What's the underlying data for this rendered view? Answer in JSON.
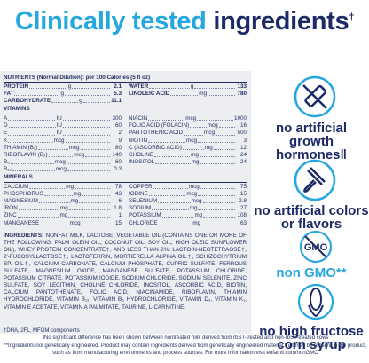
{
  "title": {
    "light": "Clinically tested",
    "dark": "ingredients",
    "mark": "†"
  },
  "nutrition": {
    "header": "NUTRIENTS (Normal Dilution): per 100 Calories (5 fl oz)",
    "macros": {
      "left": [
        {
          "name": "PROTEIN",
          "unit": "g",
          "value": 2.1
        },
        {
          "name": "FAT",
          "unit": "g",
          "value": 5.3
        },
        {
          "name": "CARBOHYDRATE",
          "unit": "g",
          "value": 11.1
        }
      ],
      "right": [
        {
          "name": "WATER",
          "unit": "g",
          "value": 133
        },
        {
          "name": "LINOLEIC ACID",
          "unit": "mg",
          "value": 780
        }
      ]
    },
    "vitamins": {
      "heading": "VITAMINS",
      "left": [
        {
          "name": "A",
          "unit": "IU",
          "value": 300
        },
        {
          "name": "D",
          "unit": "IU",
          "value": 60
        },
        {
          "name": "E",
          "unit": "IU",
          "value": 2
        },
        {
          "name": "K",
          "unit": "mcg",
          "value": 9
        },
        {
          "name": "THIAMIN (B₁)",
          "unit": "mcg",
          "value": 80
        },
        {
          "name": "RIBOFLAVIN (B₂)",
          "unit": "mcg",
          "value": 140
        },
        {
          "name": "B₆",
          "unit": "mcg",
          "value": 60
        },
        {
          "name": "B₁₂",
          "unit": "mcg",
          "value": 0.3
        }
      ],
      "right": [
        {
          "name": "NIACIN",
          "unit": "mcg",
          "value": 1000
        },
        {
          "name": "FOLIC ACID (FOLACIN)",
          "unit": "mcg",
          "value": 16
        },
        {
          "name": "PANTOTHENIC ACID",
          "unit": "mcg",
          "value": 500
        },
        {
          "name": "BIOTIN",
          "unit": "mcg",
          "value": 3
        },
        {
          "name": "C (ASCORBIC ACID)",
          "unit": "mg",
          "value": 12
        },
        {
          "name": "CHOLINE",
          "unit": "mg",
          "value": 24
        },
        {
          "name": "INOSITOL",
          "unit": "mg",
          "value": 24
        }
      ]
    },
    "minerals": {
      "heading": "MINERALS",
      "left": [
        {
          "name": "CALCIUM",
          "unit": "mg",
          "value": 78
        },
        {
          "name": "PHOSPHORUS",
          "unit": "mg",
          "value": 43
        },
        {
          "name": "MAGNESIUM",
          "unit": "mg",
          "value": 6
        },
        {
          "name": "IRON",
          "unit": "mg",
          "value": 1.8
        },
        {
          "name": "ZINC",
          "unit": "mg",
          "value": 1
        },
        {
          "name": "MANGANESE",
          "unit": "mcg",
          "value": 15
        }
      ],
      "right": [
        {
          "name": "COPPER",
          "unit": "mcg",
          "value": 75
        },
        {
          "name": "IODINE",
          "unit": "mcg",
          "value": 15
        },
        {
          "name": "SELENIUM",
          "unit": "mcg",
          "value": 2.8
        },
        {
          "name": "SODIUM",
          "unit": "mg",
          "value": 27
        },
        {
          "name": "POTASSIUM",
          "unit": "mg",
          "value": 108
        },
        {
          "name": "CHLORIDE",
          "unit": "mg",
          "value": 63
        }
      ]
    },
    "ingredients": {
      "label": "INGREDIENTS:",
      "text": "NONFAT MILK, LACTOSE, VEGETABLE OIL (CONTAINS ONE OR MORE OF THE FOLLOWING: PALM OLEIN OIL, COCONUT OIL, SOY OIL, HIGH OLEIC SUNFLOWER OIL), WHEY PROTEIN CONCENTRATE†, AND LESS THAN 2%: LACTO-N-NEOTETRAOSE†, 2'-FUCOSYLLACTOSE†, LACTOFERRIN, MORTIERELLA ALPINA OIL†, SCHIZOCHYTRIUM SP. OIL†, CALCIUM CARBONATE, CALCIUM PHOSPHATE, CUPRIC SULFATE, FERROUS SULFATE, MAGNESIUM OXIDE, MANGANESE SULFATE, POTASSIUM CHLORIDE, POTASSIUM CITRATE, POTASSIUM IODIDE, SODIUM CHLORIDE, SODIUM SELENITE, ZINC SULFATE, SOY LECITHIN, CHOLINE CHLORIDE, INOSITOL, ASCORBIC ACID, BIOTIN, CALCIUM PANTOTHENATE, FOLIC ACID, NIACINAMIDE, RIBOFLAVIN, THIAMIN HYDROCHLORIDE, VITAMIN B₁₂, VITAMIN B₆ HYDROCHLORIDE, VITAMIN D₃, VITAMIN K₁, VITAMIN E ACETATE, VITAMIN A PALMITATE, TAURINE, L-CARNITINE."
    }
  },
  "footnotes": [
    "†DHA, 2FL, MFGM components",
    "‖No significant difference has been shown between nontreated milk derived from rbST-treated and non-rbST-treated cows",
    "**Ingredients not genetically engineered. Product may contain ingredients derived from genetically engineered material that may be present in the product, such as from manufacturing environments and process sources. For more information visit enfamil.com/nonGMO"
  ],
  "claims": [
    "no artificial growth hormones‖",
    "no artificial colors or flavors",
    "non GMO**",
    "no high fructose corn syrup"
  ]
}
